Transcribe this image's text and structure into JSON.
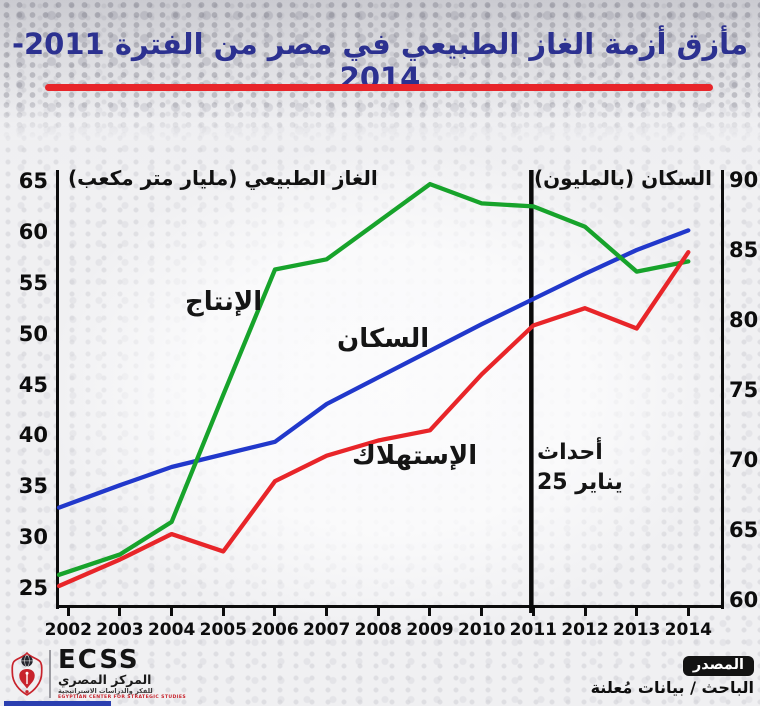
{
  "title": "مأزق أزمة الغاز الطبيعي في مصر من الفترة 2011-2014",
  "accent_colors": {
    "title": "#2c3190",
    "underline": "#e8252a"
  },
  "chart_data": {
    "type": "line",
    "x": [
      2002,
      2003,
      2004,
      2005,
      2006,
      2007,
      2008,
      2009,
      2010,
      2011,
      2012,
      2013,
      2014
    ],
    "left_axis": {
      "label": "الغاز الطبيعي (مليار متر مكعب)",
      "min": 25,
      "max": 65,
      "ticks": [
        65,
        60,
        55,
        50,
        45,
        40,
        35,
        30,
        25
      ]
    },
    "right_axis": {
      "label": "السكان (بالمليون)",
      "min": 60,
      "max": 90,
      "ticks": [
        90,
        85,
        80,
        75,
        70,
        65,
        60
      ]
    },
    "grid": false,
    "legend_position": "inline-labels",
    "series": [
      {
        "key": "production",
        "name": "الإنتاج",
        "axis": "left",
        "color": "#17a32b",
        "values": [
          26.3,
          28.3,
          31.5,
          44.0,
          56.3,
          57.3,
          61.0,
          64.7,
          62.8,
          62.5,
          60.5,
          56.1,
          57.1
        ]
      },
      {
        "key": "consumption",
        "name": "الإستهلاك",
        "axis": "left",
        "color": "#e82529",
        "values": [
          25.2,
          27.8,
          30.3,
          28.6,
          35.5,
          38.0,
          39.5,
          40.5,
          46.0,
          50.8,
          52.5,
          50.5,
          58.0
        ]
      },
      {
        "key": "population",
        "name": "السكان",
        "axis": "right",
        "color": "#2138cb",
        "values": [
          66.6,
          68.2,
          69.5,
          70.4,
          71.3,
          74.0,
          75.9,
          77.8,
          79.7,
          81.5,
          83.3,
          85.0,
          86.4
        ]
      }
    ],
    "event_line": {
      "x": 2011,
      "color": "#0a0a0a",
      "label_line1": "أحداث",
      "label_line2": "25 يناير"
    }
  },
  "footer": {
    "logo": {
      "acronym": "ECSS",
      "name_ar": "المركز المصري",
      "subtitle_ar": "للفكر والدراسات الاستراتيجية",
      "subtitle_en": "EGYPTIAN CENTER FOR STRATEGIC STUDIES"
    },
    "source": {
      "badge": "المصدر",
      "text": "الباحث / بيانات مُعلنة"
    }
  }
}
